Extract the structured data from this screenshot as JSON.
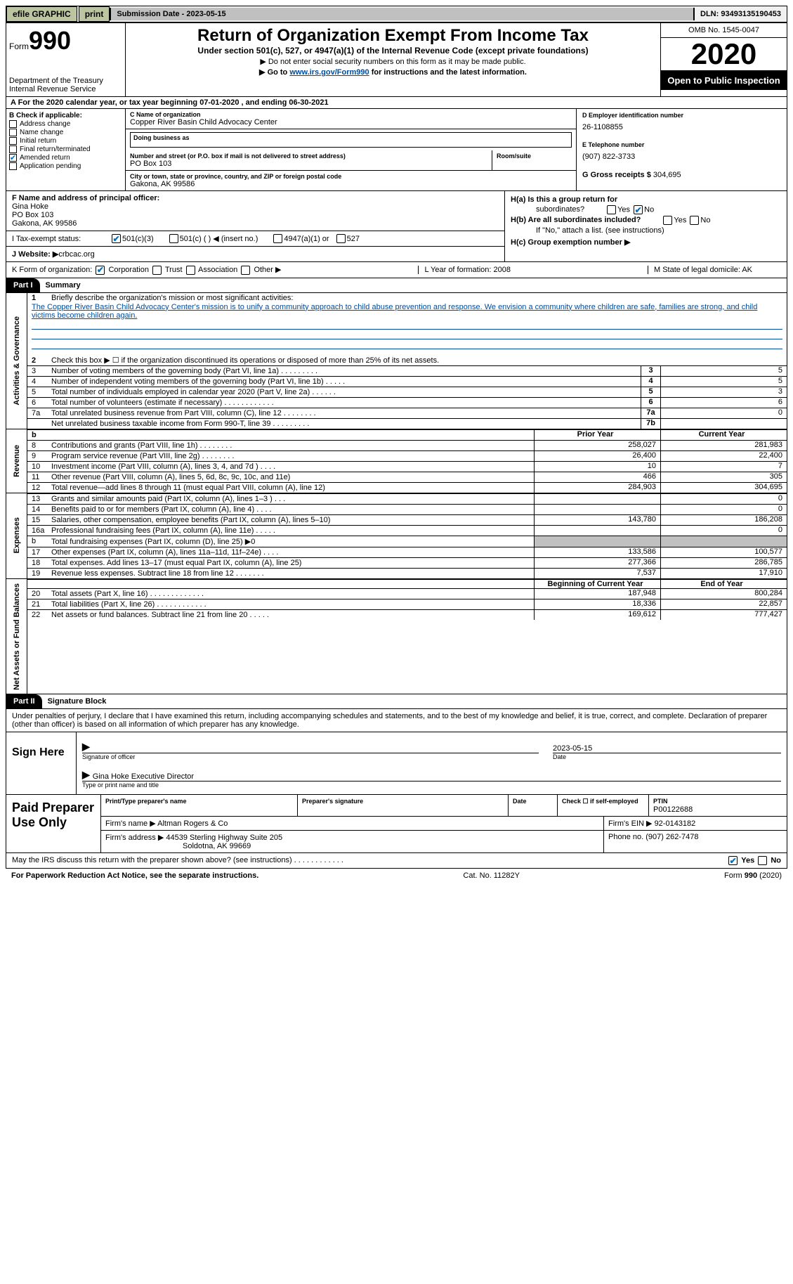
{
  "top": {
    "efile": "efile GRAPHIC",
    "print": "print",
    "subdate_lbl": "Submission Date - 2023-05-15",
    "dln_lbl": "DLN: 93493135190453"
  },
  "header": {
    "form_word": "Form",
    "form_num": "990",
    "dept": "Department of the Treasury",
    "irs": "Internal Revenue Service",
    "title": "Return of Organization Exempt From Income Tax",
    "subtitle": "Under section 501(c), 527, or 4947(a)(1) of the Internal Revenue Code (except private foundations)",
    "note1": "▶ Do not enter social security numbers on this form as it may be made public.",
    "note2_pre": "▶ Go to ",
    "note2_link": "www.irs.gov/Form990",
    "note2_post": " for instructions and the latest information.",
    "omb": "OMB No. 1545-0047",
    "year": "2020",
    "open": "Open to Public Inspection"
  },
  "period": "A For the 2020 calendar year, or tax year beginning 07-01-2020    , and ending 06-30-2021",
  "checkB": {
    "hdr": "B Check if applicable:",
    "items": [
      "Address change",
      "Name change",
      "Initial return",
      "Final return/terminated",
      "Amended return",
      "Application pending"
    ],
    "checked": [
      false,
      false,
      false,
      false,
      true,
      false
    ]
  },
  "org": {
    "c_lbl": "C Name of organization",
    "name": "Copper River Basin Child Advocacy Center",
    "dba_lbl": "Doing business as",
    "addr_lbl": "Number and street (or P.O. box if mail is not delivered to street address)",
    "room_lbl": "Room/suite",
    "addr": "PO Box 103",
    "city_lbl": "City or town, state or province, country, and ZIP or foreign postal code",
    "city": "Gakona, AK   99586"
  },
  "colD": {
    "d_lbl": "D Employer identification number",
    "ein": "26-1108855",
    "e_lbl": "E Telephone number",
    "phone": "(907) 822-3733",
    "g_lbl": "G Gross receipts $ ",
    "gross": "304,695"
  },
  "f": {
    "lbl": "F  Name and address of principal officer:",
    "name": "Gina Hoke",
    "addr1": "PO Box 103",
    "addr2": "Gakona, AK   99586"
  },
  "h": {
    "a": "H(a)  Is this a group return for",
    "a2": "subordinates?",
    "b": "H(b)  Are all subordinates included?",
    "note": "If \"No,\" attach a list. (see instructions)",
    "c": "H(c)  Group exemption number ▶",
    "yes": "Yes",
    "no": "No"
  },
  "i": {
    "lbl": "I   Tax-exempt status:",
    "o1": "501(c)(3)",
    "o2": "501(c) (  ) ◀ (insert no.)",
    "o3": "4947(a)(1) or",
    "o4": "527"
  },
  "j": {
    "lbl": "J   Website: ▶ ",
    "val": "crbcac.org"
  },
  "k": {
    "lbl": "K Form of organization:",
    "corp": "Corporation",
    "trust": "Trust",
    "assoc": "Association",
    "other": "Other ▶"
  },
  "lm": {
    "l": "L Year of formation: 2008",
    "m": "M State of legal domicile: AK"
  },
  "part1": {
    "hdr": "Part I",
    "title": "Summary"
  },
  "gov": {
    "vtab": "Activities & Governance",
    "l1": "Briefly describe the organization's mission or most significant activities:",
    "mission": "The Copper River Basin Child Advocacy Center's mission is to unify a community approach to child abuse prevention and response. We envision a community where children are safe, families are strong, and child victims become children again.",
    "l2": "Check this box ▶ ☐  if the organization discontinued its operations or disposed of more than 25% of its net assets.",
    "rows": [
      {
        "n": "3",
        "d": "Number of voting members of the governing body (Part VI, line 1a)   .    .    .    .    .    .    .    .    .",
        "k": "3",
        "v": "5"
      },
      {
        "n": "4",
        "d": "Number of independent voting members of the governing body (Part VI, line 1b)    .    .    .    .    .",
        "k": "4",
        "v": "5"
      },
      {
        "n": "5",
        "d": "Total number of individuals employed in calendar year 2020 (Part V, line 2a)    .    .    .    .    .    .",
        "k": "5",
        "v": "3"
      },
      {
        "n": "6",
        "d": "Total number of volunteers (estimate if necessary)    .    .    .    .    .    .    .    .    .    .    .    .",
        "k": "6",
        "v": "6"
      },
      {
        "n": "7a",
        "d": "Total unrelated business revenue from Part VIII, column (C), line 12    .    .    .    .    .    .    .    .",
        "k": "7a",
        "v": "0"
      },
      {
        "n": "",
        "d": "Net unrelated business taxable income from Form 990-T, line 39    .    .    .    .    .    .    .    .    .",
        "k": "7b",
        "v": ""
      }
    ]
  },
  "rev": {
    "vtab": "Revenue",
    "py": "Prior Year",
    "cy": "Current Year",
    "rows": [
      {
        "n": "8",
        "d": "Contributions and grants (Part VIII, line 1h)    .    .    .    .    .    .    .    .",
        "p": "258,027",
        "c": "281,983"
      },
      {
        "n": "9",
        "d": "Program service revenue (Part VIII, line 2g)    .    .    .    .    .    .    .    .",
        "p": "26,400",
        "c": "22,400"
      },
      {
        "n": "10",
        "d": "Investment income (Part VIII, column (A), lines 3, 4, and 7d )    .    .    .    .",
        "p": "10",
        "c": "7"
      },
      {
        "n": "11",
        "d": "Other revenue (Part VIII, column (A), lines 5, 6d, 8c, 9c, 10c, and 11e)",
        "p": "466",
        "c": "305"
      },
      {
        "n": "12",
        "d": "Total revenue—add lines 8 through 11 (must equal Part VIII, column (A), line 12)",
        "p": "284,903",
        "c": "304,695"
      }
    ]
  },
  "exp": {
    "vtab": "Expenses",
    "rows": [
      {
        "n": "13",
        "d": "Grants and similar amounts paid (Part IX, column (A), lines 1–3 )    .    .    .",
        "p": "",
        "c": "0"
      },
      {
        "n": "14",
        "d": "Benefits paid to or for members (Part IX, column (A), line 4)    .    .    .    .",
        "p": "",
        "c": "0"
      },
      {
        "n": "15",
        "d": "Salaries, other compensation, employee benefits (Part IX, column (A), lines 5–10)",
        "p": "143,780",
        "c": "186,208"
      },
      {
        "n": "16a",
        "d": "Professional fundraising fees (Part IX, column (A), line 11e)    .    .    .    .    .",
        "p": "",
        "c": "0"
      },
      {
        "n": "b",
        "d": "Total fundraising expenses (Part IX, column (D), line 25) ▶0",
        "p": "shaded",
        "c": "shaded"
      },
      {
        "n": "17",
        "d": "Other expenses (Part IX, column (A), lines 11a–11d, 11f–24e)    .    .    .    .",
        "p": "133,586",
        "c": "100,577"
      },
      {
        "n": "18",
        "d": "Total expenses. Add lines 13–17 (must equal Part IX, column (A), line 25)",
        "p": "277,366",
        "c": "286,785"
      },
      {
        "n": "19",
        "d": "Revenue less expenses. Subtract line 18 from line 12    .    .    .    .    .    .    .",
        "p": "7,537",
        "c": "17,910"
      }
    ]
  },
  "net": {
    "vtab": "Net Assets or Fund Balances",
    "by": "Beginning of Current Year",
    "ey": "End of Year",
    "rows": [
      {
        "n": "20",
        "d": "Total assets (Part X, line 16)    .    .    .    .    .    .    .    .    .    .    .    .    .",
        "p": "187,948",
        "c": "800,284"
      },
      {
        "n": "21",
        "d": "Total liabilities (Part X, line 26)    .    .    .    .    .    .    .    .    .    .    .    .",
        "p": "18,336",
        "c": "22,857"
      },
      {
        "n": "22",
        "d": "Net assets or fund balances. Subtract line 21 from line 20    .    .    .    .    .",
        "p": "169,612",
        "c": "777,427"
      }
    ]
  },
  "part2": {
    "hdr": "Part II",
    "title": "Signature Block"
  },
  "sig": {
    "penalty": "Under penalties of perjury, I declare that I have examined this return, including accompanying schedules and statements, and to the best of my knowledge and belief, it is true, correct, and complete. Declaration of preparer (other than officer) is based on all information of which preparer has any knowledge.",
    "here": "Sign Here",
    "date": "2023-05-15",
    "sig_lbl": "Signature of officer",
    "date_lbl": "Date",
    "name": "Gina Hoke  Executive Director",
    "type_lbl": "Type or print name and title"
  },
  "paid": {
    "hdr": "Paid Preparer Use Only",
    "r1": {
      "c1": "Print/Type preparer's name",
      "c2": "Preparer's signature",
      "c3": "Date",
      "c4": "Check ☐ if self-employed",
      "c5": "PTIN",
      "ptin": "P00122688"
    },
    "r2": {
      "lbl": "Firm's name    ▶ ",
      "v": "Altman Rogers & Co",
      "ein_lbl": "Firm's EIN ▶ ",
      "ein": "92-0143182"
    },
    "r3": {
      "lbl": "Firm's address ▶ ",
      "v": "44539 Sterling Highway Suite 205",
      "city": "Soldotna, AK   99669",
      "ph_lbl": "Phone no. ",
      "ph": "(907) 262-7478"
    }
  },
  "may": {
    "q": "May the IRS discuss this return with the preparer shown above? (see instructions)    .    .    .    .    .    .    .    .    .    .    .    .",
    "yes": "Yes",
    "no": "No"
  },
  "footer": {
    "l": "For Paperwork Reduction Act Notice, see the separate instructions.",
    "m": "Cat. No. 11282Y",
    "r": "Form 990 (2020)"
  }
}
